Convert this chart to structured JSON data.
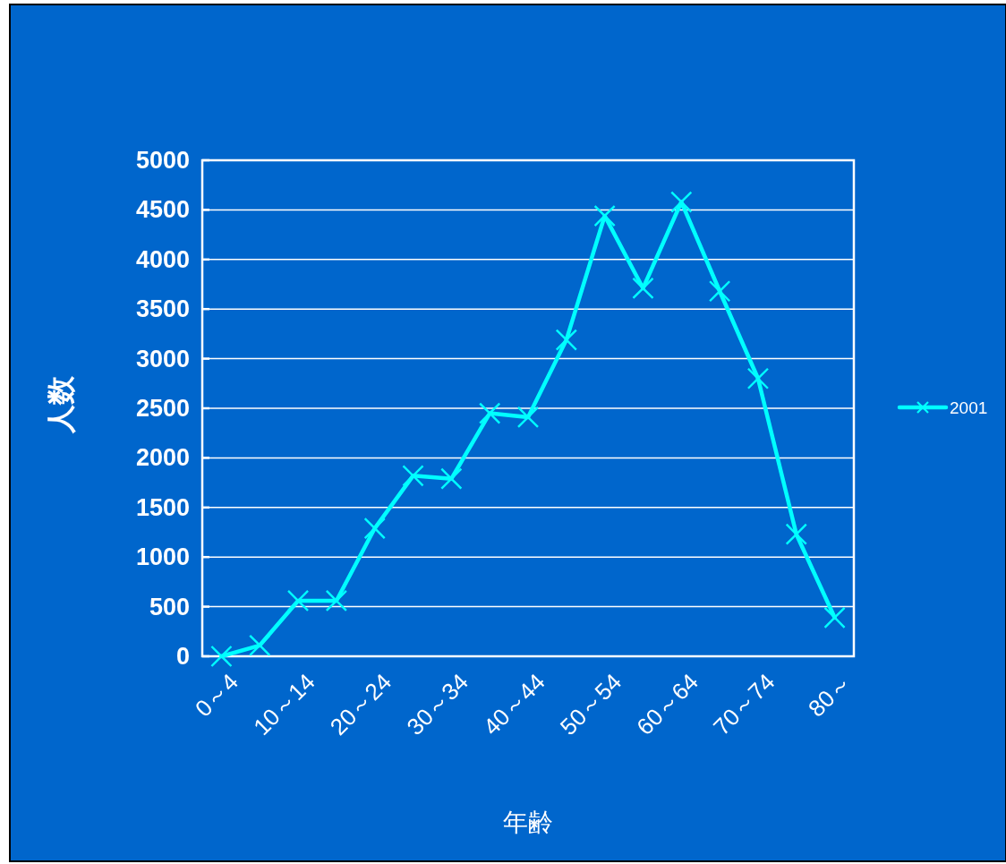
{
  "chart_data": {
    "type": "line",
    "xlabel": "年齢",
    "ylabel": "人数",
    "categories": [
      "0～4",
      null,
      "10～14",
      null,
      "20～24",
      null,
      "30～34",
      null,
      "40～44",
      null,
      "50～54",
      null,
      "60～64",
      null,
      "70～74",
      null,
      "80～"
    ],
    "series": [
      {
        "name": "2001",
        "color": "#00ffff",
        "values": [
          0,
          110,
          560,
          560,
          1290,
          1820,
          1790,
          2450,
          2410,
          3190,
          4440,
          3710,
          4580,
          3680,
          2800,
          1230,
          390
        ]
      }
    ],
    "ylim": [
      0,
      5000
    ],
    "yticks": [
      0,
      500,
      1000,
      1500,
      2000,
      2500,
      3000,
      3500,
      4000,
      4500,
      5000
    ],
    "grid": "y",
    "legend": "right",
    "marker": "cross",
    "line_style": "solid"
  }
}
